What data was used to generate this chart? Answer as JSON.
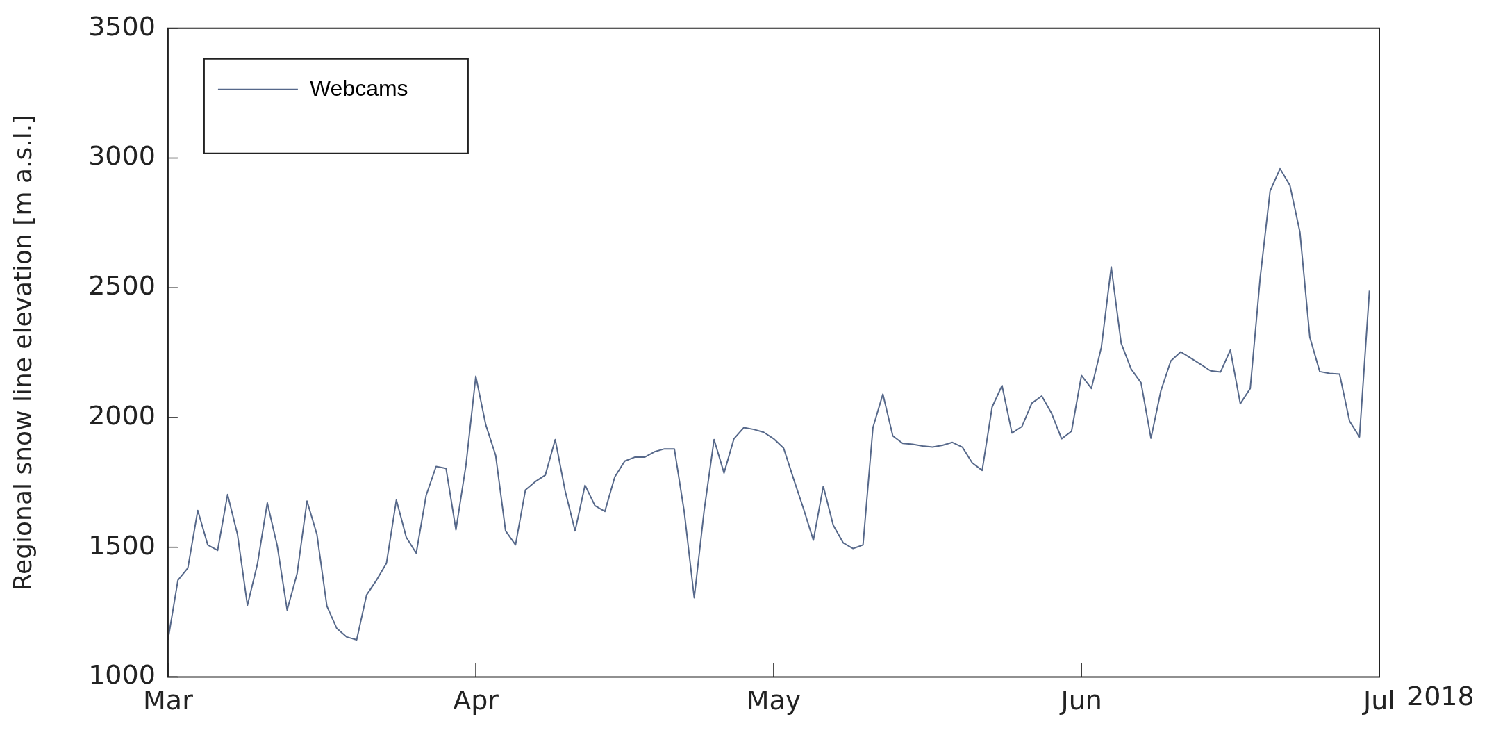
{
  "chart_data": {
    "type": "line",
    "ylabel": "Regional snow line elevation [m a.s.l.]",
    "x": [
      "2018-03-01",
      "2018-03-02",
      "2018-03-03",
      "2018-03-04",
      "2018-03-05",
      "2018-03-06",
      "2018-03-07",
      "2018-03-08",
      "2018-03-09",
      "2018-03-10",
      "2018-03-11",
      "2018-03-12",
      "2018-03-13",
      "2018-03-14",
      "2018-03-15",
      "2018-03-16",
      "2018-03-17",
      "2018-03-18",
      "2018-03-19",
      "2018-03-20",
      "2018-03-21",
      "2018-03-22",
      "2018-03-23",
      "2018-03-24",
      "2018-03-25",
      "2018-03-26",
      "2018-03-27",
      "2018-03-28",
      "2018-03-29",
      "2018-03-30",
      "2018-03-31",
      "2018-04-01",
      "2018-04-02",
      "2018-04-03",
      "2018-04-04",
      "2018-04-05",
      "2018-04-06",
      "2018-04-07",
      "2018-04-08",
      "2018-04-09",
      "2018-04-10",
      "2018-04-11",
      "2018-04-12",
      "2018-04-13",
      "2018-04-14",
      "2018-04-15",
      "2018-04-16",
      "2018-04-17",
      "2018-04-18",
      "2018-04-19",
      "2018-04-20",
      "2018-04-21",
      "2018-04-22",
      "2018-04-23",
      "2018-04-24",
      "2018-04-25",
      "2018-04-26",
      "2018-04-27",
      "2018-04-28",
      "2018-04-29",
      "2018-04-30",
      "2018-05-01",
      "2018-05-02",
      "2018-05-03",
      "2018-05-04",
      "2018-05-05",
      "2018-05-06",
      "2018-05-07",
      "2018-05-08",
      "2018-05-09",
      "2018-05-10",
      "2018-05-11",
      "2018-05-12",
      "2018-05-13",
      "2018-05-14",
      "2018-05-15",
      "2018-05-16",
      "2018-05-17",
      "2018-05-18",
      "2018-05-19",
      "2018-05-20",
      "2018-05-21",
      "2018-05-22",
      "2018-05-23",
      "2018-05-24",
      "2018-05-25",
      "2018-05-26",
      "2018-05-27",
      "2018-05-28",
      "2018-05-29",
      "2018-05-30",
      "2018-05-31",
      "2018-06-01",
      "2018-06-02",
      "2018-06-03",
      "2018-06-04",
      "2018-06-05",
      "2018-06-06",
      "2018-06-07",
      "2018-06-08",
      "2018-06-09",
      "2018-06-10",
      "2018-06-11",
      "2018-06-12",
      "2018-06-13",
      "2018-06-14",
      "2018-06-15",
      "2018-06-16",
      "2018-06-17",
      "2018-06-18",
      "2018-06-19",
      "2018-06-20",
      "2018-06-21",
      "2018-06-22",
      "2018-06-23",
      "2018-06-24",
      "2018-06-25",
      "2018-06-26",
      "2018-06-27",
      "2018-06-28",
      "2018-06-29",
      "2018-06-30"
    ],
    "series": [
      {
        "name": "Webcams",
        "color": "#56688a",
        "values": [
          1143,
          1373,
          1420,
          1642,
          1509,
          1488,
          1703,
          1549,
          1276,
          1434,
          1671,
          1506,
          1258,
          1398,
          1678,
          1549,
          1273,
          1187,
          1154,
          1143,
          1316,
          1373,
          1438,
          1682,
          1538,
          1477,
          1700,
          1811,
          1804,
          1567,
          1814,
          2159,
          1972,
          1854,
          1563,
          1509,
          1721,
          1753,
          1778,
          1915,
          1717,
          1563,
          1739,
          1660,
          1638,
          1771,
          1832,
          1847,
          1847,
          1868,
          1879,
          1879,
          1635,
          1305,
          1642,
          1915,
          1786,
          1918,
          1961,
          1954,
          1943,
          1918,
          1882,
          1764,
          1649,
          1527,
          1735,
          1585,
          1517,
          1495,
          1509,
          1961,
          2090,
          1929,
          1900,
          1897,
          1890,
          1886,
          1893,
          1904,
          1886,
          1825,
          1796,
          2040,
          2123,
          1940,
          1965,
          2055,
          2083,
          2015,
          1918,
          1947,
          2162,
          2112,
          2270,
          2580,
          2286,
          2187,
          2134,
          1920,
          2103,
          2218,
          2253,
          2229,
          2205,
          2180,
          2175,
          2260,
          2053,
          2112,
          2539,
          2873,
          2959,
          2894,
          2715,
          2309,
          2177,
          2170,
          2167,
          1986,
          1925,
          2489
        ]
      }
    ],
    "xlim": [
      "2018-03-01",
      "2018-07-01"
    ],
    "xticks": [
      {
        "value": "2018-03-01",
        "label": "Mar"
      },
      {
        "value": "2018-04-01",
        "label": "Apr"
      },
      {
        "value": "2018-05-01",
        "label": "May"
      },
      {
        "value": "2018-06-01",
        "label": "Jun"
      },
      {
        "value": "2018-07-01",
        "label": "Jul"
      }
    ],
    "ylim": [
      1000,
      3500
    ],
    "yticks": [
      1000,
      1500,
      2000,
      2500,
      3000,
      3500
    ],
    "annotations": [
      "2018"
    ],
    "legend": "top left",
    "grid": false,
    "marker": "none",
    "line_style": "solid"
  }
}
